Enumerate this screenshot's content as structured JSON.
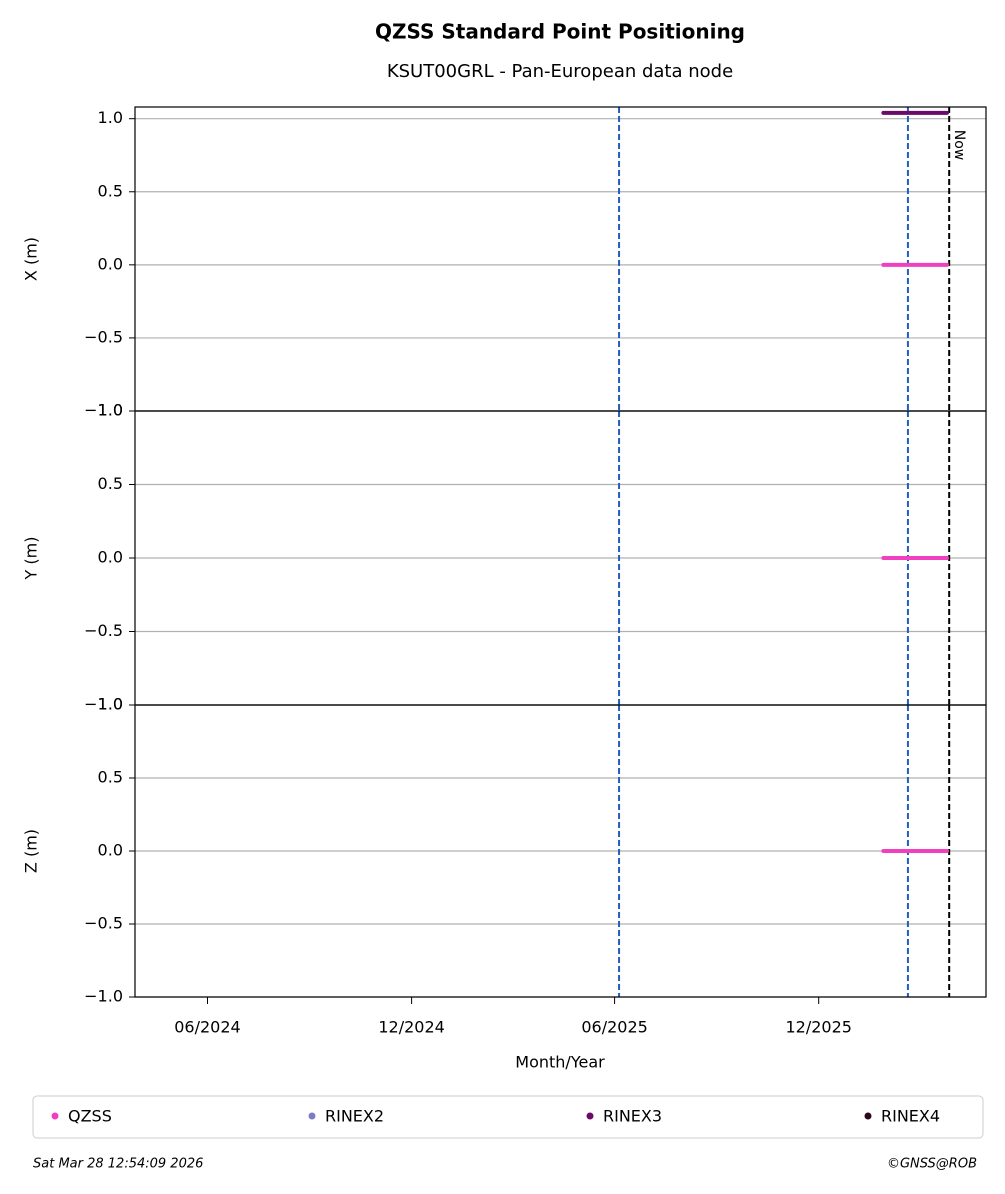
{
  "title": "QZSS Standard Point Positioning",
  "subtitle": "KSUT00GRL - Pan-European data node",
  "xlabel": "Month/Year",
  "xlim": [
    "2024-03-28",
    "2026-04-30"
  ],
  "xticks": [
    {
      "value": "2024-06-01",
      "label": "06/2024"
    },
    {
      "value": "2024-12-01",
      "label": "12/2024"
    },
    {
      "value": "2025-06-01",
      "label": "06/2025"
    },
    {
      "value": "2025-12-01",
      "label": "12/2025"
    }
  ],
  "markers": [
    {
      "x": "2025-06-05",
      "color": "#1f5fbf"
    },
    {
      "x": "2026-02-19",
      "color": "#1f5fbf"
    }
  ],
  "now": {
    "x": "2026-03-28",
    "label": "Now",
    "color": "#000000"
  },
  "legend": [
    {
      "name": "QZSS",
      "color": "#f040c0"
    },
    {
      "name": "RINEX2",
      "color": "#7b7bc8"
    },
    {
      "name": "RINEX3",
      "color": "#6a0a6a"
    },
    {
      "name": "RINEX4",
      "color": "#2a0a1a"
    }
  ],
  "footer": {
    "date": "Sat Mar 28 12:54:09 2026",
    "credit": "©GNSS@ROB"
  },
  "chart_data": [
    {
      "type": "line",
      "ylabel": "X (m)",
      "ylim": [
        -1,
        1.08
      ],
      "grid": true,
      "yticks": [
        {
          "value": -1,
          "label": "−1.0"
        },
        {
          "value": -0.5,
          "label": "−0.5"
        },
        {
          "value": 0,
          "label": "0.0"
        },
        {
          "value": 0.5,
          "label": "0.5"
        },
        {
          "value": 1,
          "label": "1.0"
        }
      ],
      "series": [
        {
          "color": "#f040c0",
          "x": [
            "2026-01-28",
            "2026-03-26"
          ],
          "values": [
            0,
            0
          ]
        },
        {
          "color": "#6a0a6a",
          "x": [
            "2026-01-28",
            "2026-03-26"
          ],
          "values": [
            1.04,
            1.04
          ]
        }
      ]
    },
    {
      "type": "line",
      "ylabel": "Y (m)",
      "ylim": [
        -1,
        1
      ],
      "grid": true,
      "yticks": [
        {
          "value": -1,
          "label": "−1.0"
        },
        {
          "value": -0.5,
          "label": "−0.5"
        },
        {
          "value": 0,
          "label": "0.0"
        },
        {
          "value": 0.5,
          "label": "0.5"
        },
        {
          "value": 1,
          "label": "1.0"
        }
      ],
      "series": [
        {
          "color": "#f040c0",
          "x": [
            "2026-01-28",
            "2026-03-26"
          ],
          "values": [
            0,
            0
          ]
        }
      ]
    },
    {
      "type": "line",
      "ylabel": "Z (m)",
      "ylim": [
        -1,
        1
      ],
      "grid": true,
      "yticks": [
        {
          "value": -1,
          "label": "−1.0"
        },
        {
          "value": -0.5,
          "label": "−0.5"
        },
        {
          "value": 0,
          "label": "0.0"
        },
        {
          "value": 0.5,
          "label": "0.5"
        },
        {
          "value": 1,
          "label": "1.0"
        }
      ],
      "series": [
        {
          "color": "#f040c0",
          "x": [
            "2026-01-28",
            "2026-03-26"
          ],
          "values": [
            0,
            0
          ]
        }
      ]
    }
  ]
}
